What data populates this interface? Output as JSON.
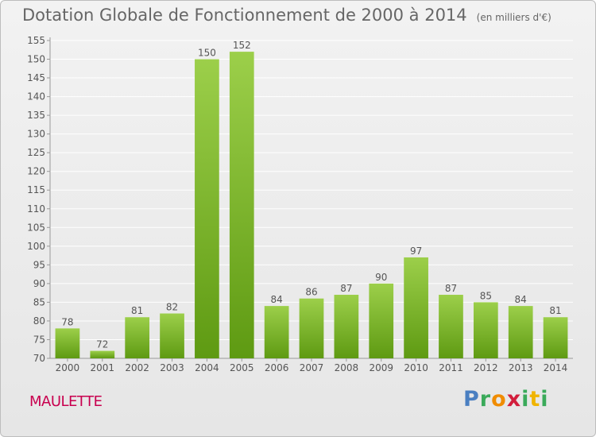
{
  "header": {
    "title": "Dotation Globale de Fonctionnement de 2000 à 2014",
    "unit": "(en milliers d'€)"
  },
  "footer": {
    "city": "MAULETTE",
    "logo": {
      "text": "Proxiti",
      "letters": [
        "P",
        "r",
        "o",
        "x",
        "i",
        "t",
        "i"
      ]
    }
  },
  "colors": {
    "bar_top": "#9ccf4a",
    "bar_bottom": "#5e9a12",
    "grid": "#ffffff",
    "text": "#555555",
    "city": "#c8004f"
  },
  "chart_data": {
    "type": "bar",
    "title": "Dotation Globale de Fonctionnement de 2000 à 2014",
    "subtitle": "(en milliers d'€)",
    "categories": [
      "2000",
      "2001",
      "2002",
      "2003",
      "2004",
      "2005",
      "2006",
      "2007",
      "2008",
      "2009",
      "2010",
      "2011",
      "2012",
      "2013",
      "2014"
    ],
    "values": [
      78,
      72,
      81,
      82,
      150,
      152,
      84,
      86,
      87,
      90,
      97,
      87,
      85,
      84,
      81
    ],
    "xlabel": "",
    "ylabel": "",
    "ylim": [
      70,
      155
    ],
    "yticks": [
      70,
      75,
      80,
      85,
      90,
      95,
      100,
      105,
      110,
      115,
      120,
      125,
      130,
      135,
      140,
      145,
      150,
      155
    ],
    "grid": true,
    "data_labels": true
  }
}
